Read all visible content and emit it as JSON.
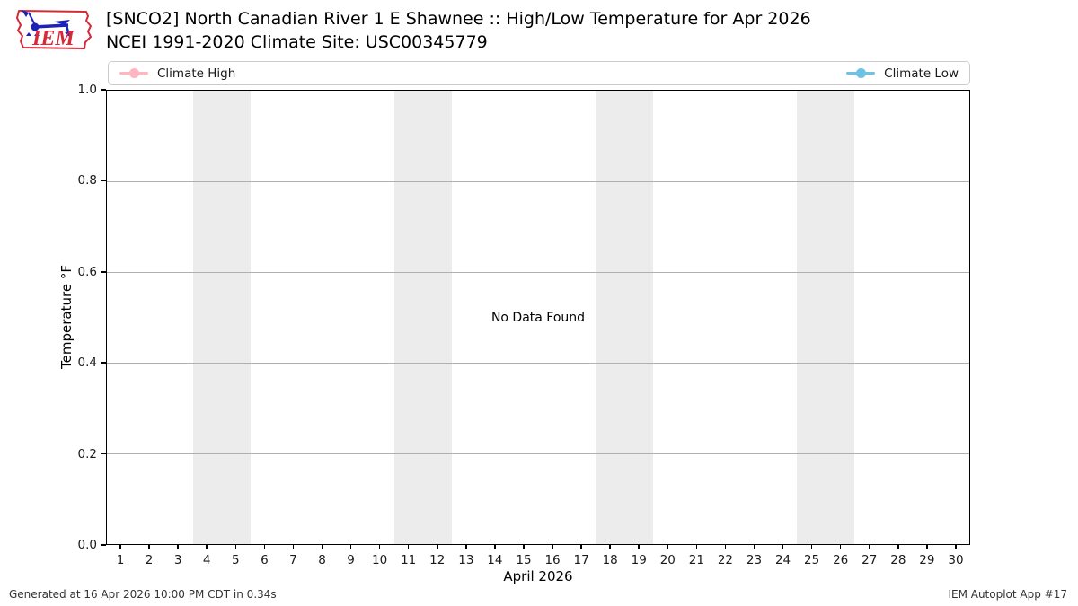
{
  "header": {
    "title_line1": "[SNCO2] North Canadian River 1 E Shawnee :: High/Low Temperature for Apr 2026",
    "title_line2": "NCEI 1991-2020 Climate Site: USC00345779",
    "logo": {
      "text": "IEM",
      "outline_color": "#d42a3a",
      "device_color": "#1c24b8",
      "text_color": "#d42a3a"
    }
  },
  "legend": {
    "items": [
      {
        "label": "Climate High",
        "color": "#ffb6c1",
        "marker": "circle-line"
      },
      {
        "label": "Climate Low",
        "color": "#6dc2e5",
        "marker": "circle-line"
      }
    ]
  },
  "chart_data": {
    "type": "line",
    "title": "[SNCO2] North Canadian River 1 E Shawnee :: High/Low Temperature for Apr 2026",
    "subtitle": "NCEI 1991-2020 Climate Site: USC00345779",
    "xlabel": "April 2026",
    "ylabel": "Temperature °F",
    "xlim": [
      0.5,
      30.5
    ],
    "ylim": [
      0.0,
      1.0
    ],
    "x_ticks": [
      1,
      2,
      3,
      4,
      5,
      6,
      7,
      8,
      9,
      10,
      11,
      12,
      13,
      14,
      15,
      16,
      17,
      18,
      19,
      20,
      21,
      22,
      23,
      24,
      25,
      26,
      27,
      28,
      29,
      30
    ],
    "y_ticks": [
      0.0,
      0.2,
      0.4,
      0.6,
      0.8,
      1.0
    ],
    "grid": true,
    "gridline_color": "#b0b0b0",
    "legend_position": "top",
    "series": [
      {
        "name": "Climate High",
        "color": "#ffb6c1",
        "values": []
      },
      {
        "name": "Climate Low",
        "color": "#6dc2e5",
        "values": []
      }
    ],
    "no_data_message": "No Data Found",
    "weekend_shading_days": [
      [
        4,
        5
      ],
      [
        11,
        12
      ],
      [
        18,
        19
      ],
      [
        25,
        26
      ]
    ],
    "shading_color": "#ececec"
  },
  "footer": {
    "left": "Generated at 16 Apr 2026 10:00 PM CDT in 0.34s",
    "right": "IEM Autoplot App #17"
  }
}
